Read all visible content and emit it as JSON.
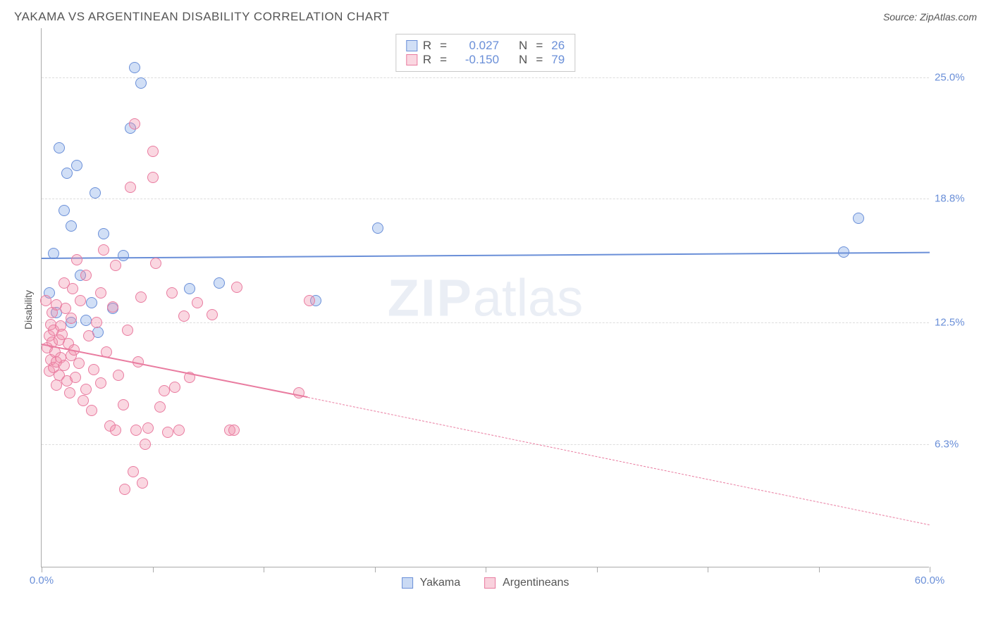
{
  "title": "YAKAMA VS ARGENTINEAN DISABILITY CORRELATION CHART",
  "source": "Source: ZipAtlas.com",
  "ylabel": "Disability",
  "watermark_bold": "ZIP",
  "watermark_rest": "atlas",
  "colors": {
    "blue_stroke": "#6a8fd8",
    "blue_fill": "rgba(122, 162, 228, 0.35)",
    "pink_stroke": "#e97ca0",
    "pink_fill": "rgba(240, 140, 170, 0.35)",
    "grid": "#dddddd",
    "axis": "#aaaaaa",
    "text": "#555555",
    "label_blue": "#6a8fd8"
  },
  "chart": {
    "type": "scatter",
    "xlim": [
      0,
      60
    ],
    "ylim": [
      0,
      27.5
    ],
    "xticks": [
      0,
      7.5,
      15,
      22.5,
      30,
      37.5,
      45,
      52.5,
      60
    ],
    "yticks": [
      6.3,
      12.5,
      18.8,
      25.0
    ],
    "ylabels": [
      "6.3%",
      "12.5%",
      "18.8%",
      "25.0%"
    ],
    "xlabels_ends": [
      "0.0%",
      "60.0%"
    ],
    "marker_size": 16
  },
  "series": [
    {
      "name": "Yakama",
      "color_stroke": "#6a8fd8",
      "color_fill": "rgba(122, 162, 228, 0.35)",
      "R": "0.027",
      "N": "26",
      "reg": {
        "x0": 0,
        "y0": 15.8,
        "x1": 60,
        "y1": 16.1,
        "dash": false,
        "width": 2.5
      },
      "points": [
        [
          1.2,
          21.4
        ],
        [
          1.7,
          20.1
        ],
        [
          2.4,
          20.5
        ],
        [
          3.6,
          19.1
        ],
        [
          0.8,
          16.0
        ],
        [
          2.0,
          17.4
        ],
        [
          2.6,
          14.9
        ],
        [
          4.2,
          17.0
        ],
        [
          6.3,
          25.5
        ],
        [
          6.7,
          24.7
        ],
        [
          3.4,
          13.5
        ],
        [
          4.8,
          13.2
        ],
        [
          1.0,
          13.0
        ],
        [
          2.0,
          12.5
        ],
        [
          3.0,
          12.6
        ],
        [
          0.5,
          14.0
        ],
        [
          5.5,
          15.9
        ],
        [
          10.0,
          14.2
        ],
        [
          12.0,
          14.5
        ],
        [
          18.5,
          13.6
        ],
        [
          22.7,
          17.3
        ],
        [
          55.2,
          17.8
        ],
        [
          54.2,
          16.1
        ],
        [
          6.0,
          22.4
        ],
        [
          3.8,
          12.0
        ],
        [
          1.5,
          18.2
        ]
      ]
    },
    {
      "name": "Argentineans",
      "color_stroke": "#e97ca0",
      "color_fill": "rgba(240, 140, 170, 0.35)",
      "R": "-0.150",
      "N": "79",
      "reg": {
        "x0": 0,
        "y0": 11.4,
        "x1": 18,
        "y1": 8.7,
        "dash": false,
        "width": 2.5
      },
      "reg_ext": {
        "x0": 18,
        "y0": 8.7,
        "x1": 60,
        "y1": 2.2,
        "dash": true,
        "width": 1
      },
      "points": [
        [
          0.3,
          13.6
        ],
        [
          0.4,
          11.2
        ],
        [
          0.5,
          10.0
        ],
        [
          0.5,
          11.8
        ],
        [
          0.6,
          12.4
        ],
        [
          0.6,
          10.6
        ],
        [
          0.7,
          11.5
        ],
        [
          0.7,
          13.0
        ],
        [
          0.8,
          10.2
        ],
        [
          0.8,
          12.1
        ],
        [
          0.9,
          11.0
        ],
        [
          1.0,
          10.5
        ],
        [
          1.0,
          9.3
        ],
        [
          1.0,
          13.4
        ],
        [
          1.2,
          11.6
        ],
        [
          1.2,
          9.8
        ],
        [
          1.3,
          12.3
        ],
        [
          1.3,
          10.7
        ],
        [
          1.4,
          11.9
        ],
        [
          1.5,
          10.3
        ],
        [
          1.5,
          14.5
        ],
        [
          1.6,
          13.2
        ],
        [
          1.7,
          9.5
        ],
        [
          1.8,
          11.4
        ],
        [
          1.9,
          8.9
        ],
        [
          2.0,
          10.8
        ],
        [
          2.0,
          12.7
        ],
        [
          2.1,
          14.2
        ],
        [
          2.2,
          11.1
        ],
        [
          2.3,
          9.7
        ],
        [
          2.4,
          15.7
        ],
        [
          2.5,
          10.4
        ],
        [
          2.6,
          13.6
        ],
        [
          2.8,
          8.5
        ],
        [
          3.0,
          9.1
        ],
        [
          3.0,
          14.9
        ],
        [
          3.2,
          11.8
        ],
        [
          3.4,
          8.0
        ],
        [
          3.5,
          10.1
        ],
        [
          3.7,
          12.5
        ],
        [
          4.0,
          14.0
        ],
        [
          4.0,
          9.4
        ],
        [
          4.2,
          16.2
        ],
        [
          4.4,
          11.0
        ],
        [
          4.6,
          7.2
        ],
        [
          4.8,
          13.3
        ],
        [
          5.0,
          7.0
        ],
        [
          5.0,
          15.4
        ],
        [
          5.2,
          9.8
        ],
        [
          5.5,
          8.3
        ],
        [
          5.6,
          4.0
        ],
        [
          5.8,
          12.1
        ],
        [
          6.0,
          19.4
        ],
        [
          6.2,
          4.9
        ],
        [
          6.3,
          22.6
        ],
        [
          6.4,
          7.0
        ],
        [
          6.5,
          10.5
        ],
        [
          6.7,
          13.8
        ],
        [
          6.8,
          4.3
        ],
        [
          7.0,
          6.3
        ],
        [
          7.2,
          7.1
        ],
        [
          7.5,
          21.2
        ],
        [
          7.5,
          19.9
        ],
        [
          7.7,
          15.5
        ],
        [
          8.0,
          8.2
        ],
        [
          8.3,
          9.0
        ],
        [
          8.5,
          6.9
        ],
        [
          8.8,
          14.0
        ],
        [
          9.0,
          9.2
        ],
        [
          9.3,
          7.0
        ],
        [
          9.6,
          12.8
        ],
        [
          10.0,
          9.7
        ],
        [
          10.5,
          13.5
        ],
        [
          11.5,
          12.9
        ],
        [
          12.7,
          7.0
        ],
        [
          13.0,
          7.0
        ],
        [
          13.2,
          14.3
        ],
        [
          17.4,
          8.9
        ],
        [
          18.1,
          13.6
        ]
      ]
    }
  ],
  "legend_bottom": [
    {
      "label": "Yakama",
      "stroke": "#6a8fd8",
      "fill": "rgba(122,162,228,0.4)"
    },
    {
      "label": "Argentineans",
      "stroke": "#e97ca0",
      "fill": "rgba(240,140,170,0.4)"
    }
  ]
}
